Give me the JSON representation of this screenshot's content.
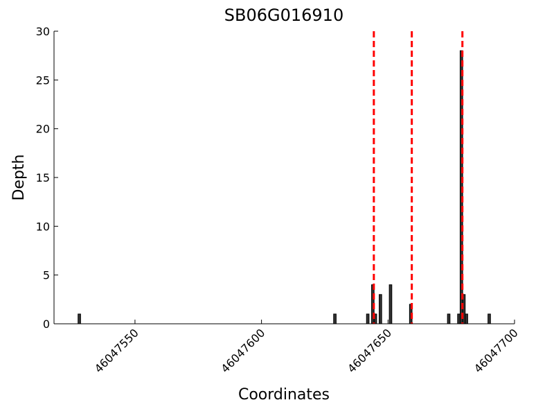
{
  "chart_data": {
    "type": "bar",
    "title": "SB06G016910",
    "x_label": "Coordinates",
    "y_label": "Depth",
    "x": [
      46047528,
      46047629,
      46047642,
      46047644,
      46047645,
      46047647,
      46047651,
      46047659,
      46047674,
      46047678,
      46047679,
      46047680,
      46047681,
      46047690
    ],
    "values": [
      1,
      1,
      1,
      4,
      1,
      3,
      4,
      2,
      1,
      1,
      28,
      3,
      1,
      1
    ],
    "color": "#333333",
    "edge_color": "#000000",
    "bar_width": 1,
    "vlines": {
      "x": [
        46047644.4,
        46047659.4,
        46047679.4
      ],
      "color": "#ff0000"
    },
    "xlim": [
      46047518,
      46047700
    ],
    "ylim": [
      0,
      30
    ],
    "xticks": [
      46047550,
      46047600,
      46047650,
      46047700
    ],
    "yticks": [
      0,
      5,
      10,
      15,
      20,
      25,
      30
    ]
  }
}
